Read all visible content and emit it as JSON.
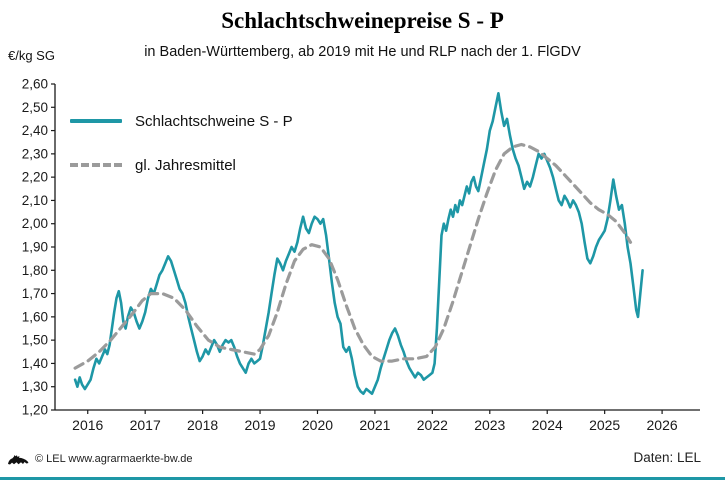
{
  "header": {
    "title": "Schlachtschweinepreise S - P",
    "subtitle": "in Baden-Württemberg, ab 2019 mit He und RLP nach der 1. FlGDV"
  },
  "y_axis_unit": "€/kg SG",
  "legend": {
    "series_price_label": "Schlachtschweine S - P",
    "series_mean_label": "gl. Jahresmittel"
  },
  "footer": {
    "copyright": "© LEL www.agrarmaerkte-bw.de",
    "source": "Daten: LEL",
    "logo": "bw-lion-logo"
  },
  "colors": {
    "accent_teal": "#1E97A6",
    "series_price": "#1E97A6",
    "series_mean": "#9B9B9B",
    "axis": "#1a1a1a"
  },
  "chart_data": {
    "type": "line",
    "title": "Schlachtschweinepreise S - P",
    "subtitle": "in Baden-Württemberg, ab 2019 mit He und RLP nach der 1. FlGDV",
    "xlabel": "",
    "ylabel": "€/kg SG",
    "ylim": [
      1.2,
      2.6
    ],
    "xlim": [
      2015.43,
      2026.66
    ],
    "grid": false,
    "legend_position": "top-left",
    "y_tick_labels": [
      "1,20",
      "1,30",
      "1,40",
      "1,50",
      "1,60",
      "1,70",
      "1,80",
      "1,90",
      "2,00",
      "2,10",
      "2,20",
      "2,30",
      "2,40",
      "2,50",
      "2,60"
    ],
    "x_tick_labels": [
      "2016",
      "2017",
      "2018",
      "2019",
      "2020",
      "2021",
      "2022",
      "2023",
      "2024",
      "2025",
      "2026"
    ],
    "series": [
      {
        "name": "Schlachtschweine S - P",
        "color": "#1E97A6",
        "style": "solid",
        "points": [
          [
            2015.78,
            1.33
          ],
          [
            2015.82,
            1.3
          ],
          [
            2015.86,
            1.34
          ],
          [
            2015.9,
            1.31
          ],
          [
            2015.95,
            1.29
          ],
          [
            2016.0,
            1.31
          ],
          [
            2016.05,
            1.33
          ],
          [
            2016.1,
            1.38
          ],
          [
            2016.15,
            1.42
          ],
          [
            2016.2,
            1.4
          ],
          [
            2016.25,
            1.43
          ],
          [
            2016.3,
            1.46
          ],
          [
            2016.34,
            1.44
          ],
          [
            2016.38,
            1.48
          ],
          [
            2016.42,
            1.55
          ],
          [
            2016.46,
            1.62
          ],
          [
            2016.5,
            1.68
          ],
          [
            2016.54,
            1.71
          ],
          [
            2016.58,
            1.66
          ],
          [
            2016.62,
            1.58
          ],
          [
            2016.66,
            1.55
          ],
          [
            2016.7,
            1.6
          ],
          [
            2016.75,
            1.64
          ],
          [
            2016.8,
            1.62
          ],
          [
            2016.85,
            1.58
          ],
          [
            2016.9,
            1.55
          ],
          [
            2016.95,
            1.58
          ],
          [
            2017.0,
            1.62
          ],
          [
            2017.05,
            1.68
          ],
          [
            2017.1,
            1.72
          ],
          [
            2017.15,
            1.7
          ],
          [
            2017.2,
            1.74
          ],
          [
            2017.25,
            1.78
          ],
          [
            2017.3,
            1.8
          ],
          [
            2017.35,
            1.83
          ],
          [
            2017.4,
            1.86
          ],
          [
            2017.45,
            1.84
          ],
          [
            2017.5,
            1.8
          ],
          [
            2017.55,
            1.76
          ],
          [
            2017.6,
            1.72
          ],
          [
            2017.65,
            1.7
          ],
          [
            2017.7,
            1.66
          ],
          [
            2017.75,
            1.6
          ],
          [
            2017.8,
            1.55
          ],
          [
            2017.85,
            1.5
          ],
          [
            2017.9,
            1.45
          ],
          [
            2017.95,
            1.41
          ],
          [
            2018.0,
            1.43
          ],
          [
            2018.05,
            1.46
          ],
          [
            2018.1,
            1.44
          ],
          [
            2018.15,
            1.47
          ],
          [
            2018.2,
            1.5
          ],
          [
            2018.25,
            1.48
          ],
          [
            2018.3,
            1.45
          ],
          [
            2018.35,
            1.48
          ],
          [
            2018.4,
            1.5
          ],
          [
            2018.45,
            1.49
          ],
          [
            2018.5,
            1.5
          ],
          [
            2018.55,
            1.47
          ],
          [
            2018.6,
            1.43
          ],
          [
            2018.65,
            1.4
          ],
          [
            2018.7,
            1.38
          ],
          [
            2018.75,
            1.36
          ],
          [
            2018.8,
            1.4
          ],
          [
            2018.85,
            1.42
          ],
          [
            2018.9,
            1.4
          ],
          [
            2018.95,
            1.41
          ],
          [
            2019.0,
            1.42
          ],
          [
            2019.05,
            1.48
          ],
          [
            2019.1,
            1.55
          ],
          [
            2019.15,
            1.62
          ],
          [
            2019.2,
            1.7
          ],
          [
            2019.25,
            1.78
          ],
          [
            2019.3,
            1.85
          ],
          [
            2019.35,
            1.83
          ],
          [
            2019.4,
            1.8
          ],
          [
            2019.45,
            1.84
          ],
          [
            2019.5,
            1.87
          ],
          [
            2019.55,
            1.9
          ],
          [
            2019.6,
            1.88
          ],
          [
            2019.65,
            1.92
          ],
          [
            2019.7,
            1.98
          ],
          [
            2019.75,
            2.03
          ],
          [
            2019.8,
            1.98
          ],
          [
            2019.85,
            1.96
          ],
          [
            2019.9,
            2.0
          ],
          [
            2019.95,
            2.03
          ],
          [
            2020.0,
            2.02
          ],
          [
            2020.05,
            2.0
          ],
          [
            2020.1,
            2.02
          ],
          [
            2020.15,
            1.95
          ],
          [
            2020.2,
            1.85
          ],
          [
            2020.25,
            1.75
          ],
          [
            2020.3,
            1.66
          ],
          [
            2020.35,
            1.6
          ],
          [
            2020.4,
            1.57
          ],
          [
            2020.45,
            1.47
          ],
          [
            2020.5,
            1.45
          ],
          [
            2020.55,
            1.47
          ],
          [
            2020.6,
            1.42
          ],
          [
            2020.65,
            1.35
          ],
          [
            2020.7,
            1.3
          ],
          [
            2020.75,
            1.28
          ],
          [
            2020.8,
            1.27
          ],
          [
            2020.85,
            1.29
          ],
          [
            2020.9,
            1.28
          ],
          [
            2020.95,
            1.27
          ],
          [
            2021.0,
            1.3
          ],
          [
            2021.05,
            1.33
          ],
          [
            2021.1,
            1.38
          ],
          [
            2021.15,
            1.42
          ],
          [
            2021.2,
            1.46
          ],
          [
            2021.25,
            1.5
          ],
          [
            2021.3,
            1.53
          ],
          [
            2021.35,
            1.55
          ],
          [
            2021.4,
            1.52
          ],
          [
            2021.45,
            1.48
          ],
          [
            2021.5,
            1.45
          ],
          [
            2021.55,
            1.41
          ],
          [
            2021.6,
            1.38
          ],
          [
            2021.65,
            1.36
          ],
          [
            2021.7,
            1.34
          ],
          [
            2021.75,
            1.36
          ],
          [
            2021.8,
            1.35
          ],
          [
            2021.85,
            1.33
          ],
          [
            2021.9,
            1.34
          ],
          [
            2021.95,
            1.35
          ],
          [
            2022.0,
            1.36
          ],
          [
            2022.04,
            1.4
          ],
          [
            2022.08,
            1.55
          ],
          [
            2022.12,
            1.75
          ],
          [
            2022.16,
            1.95
          ],
          [
            2022.2,
            2.0
          ],
          [
            2022.24,
            1.97
          ],
          [
            2022.28,
            2.02
          ],
          [
            2022.32,
            2.06
          ],
          [
            2022.36,
            2.03
          ],
          [
            2022.4,
            2.08
          ],
          [
            2022.44,
            2.05
          ],
          [
            2022.48,
            2.1
          ],
          [
            2022.52,
            2.08
          ],
          [
            2022.56,
            2.12
          ],
          [
            2022.6,
            2.16
          ],
          [
            2022.64,
            2.13
          ],
          [
            2022.68,
            2.18
          ],
          [
            2022.72,
            2.2
          ],
          [
            2022.76,
            2.16
          ],
          [
            2022.8,
            2.14
          ],
          [
            2022.85,
            2.2
          ],
          [
            2022.9,
            2.26
          ],
          [
            2022.95,
            2.32
          ],
          [
            2023.0,
            2.4
          ],
          [
            2023.05,
            2.44
          ],
          [
            2023.1,
            2.5
          ],
          [
            2023.15,
            2.56
          ],
          [
            2023.2,
            2.48
          ],
          [
            2023.25,
            2.42
          ],
          [
            2023.3,
            2.45
          ],
          [
            2023.35,
            2.38
          ],
          [
            2023.4,
            2.32
          ],
          [
            2023.45,
            2.28
          ],
          [
            2023.5,
            2.25
          ],
          [
            2023.55,
            2.2
          ],
          [
            2023.6,
            2.15
          ],
          [
            2023.65,
            2.18
          ],
          [
            2023.7,
            2.16
          ],
          [
            2023.75,
            2.2
          ],
          [
            2023.8,
            2.25
          ],
          [
            2023.85,
            2.3
          ],
          [
            2023.9,
            2.28
          ],
          [
            2023.95,
            2.3
          ],
          [
            2024.0,
            2.27
          ],
          [
            2024.05,
            2.24
          ],
          [
            2024.1,
            2.2
          ],
          [
            2024.15,
            2.15
          ],
          [
            2024.2,
            2.1
          ],
          [
            2024.25,
            2.08
          ],
          [
            2024.3,
            2.12
          ],
          [
            2024.35,
            2.1
          ],
          [
            2024.4,
            2.07
          ],
          [
            2024.45,
            2.1
          ],
          [
            2024.5,
            2.08
          ],
          [
            2024.55,
            2.05
          ],
          [
            2024.6,
            2.0
          ],
          [
            2024.65,
            1.92
          ],
          [
            2024.7,
            1.85
          ],
          [
            2024.75,
            1.83
          ],
          [
            2024.8,
            1.86
          ],
          [
            2024.85,
            1.9
          ],
          [
            2024.9,
            1.93
          ],
          [
            2024.95,
            1.95
          ],
          [
            2025.0,
            1.97
          ],
          [
            2025.05,
            2.02
          ],
          [
            2025.1,
            2.1
          ],
          [
            2025.15,
            2.19
          ],
          [
            2025.2,
            2.12
          ],
          [
            2025.25,
            2.06
          ],
          [
            2025.3,
            2.08
          ],
          [
            2025.35,
            2.0
          ],
          [
            2025.4,
            1.9
          ],
          [
            2025.45,
            1.83
          ],
          [
            2025.5,
            1.73
          ],
          [
            2025.55,
            1.63
          ],
          [
            2025.58,
            1.6
          ],
          [
            2025.62,
            1.7
          ],
          [
            2025.66,
            1.8
          ]
        ]
      },
      {
        "name": "gl. Jahresmittel",
        "color": "#9B9B9B",
        "style": "dashed",
        "points": [
          [
            2015.78,
            1.38
          ],
          [
            2016.0,
            1.41
          ],
          [
            2016.2,
            1.45
          ],
          [
            2016.4,
            1.5
          ],
          [
            2016.6,
            1.56
          ],
          [
            2016.8,
            1.62
          ],
          [
            2016.95,
            1.67
          ],
          [
            2017.1,
            1.7
          ],
          [
            2017.3,
            1.7
          ],
          [
            2017.5,
            1.68
          ],
          [
            2017.7,
            1.63
          ],
          [
            2017.9,
            1.56
          ],
          [
            2018.1,
            1.5
          ],
          [
            2018.3,
            1.47
          ],
          [
            2018.5,
            1.46
          ],
          [
            2018.7,
            1.45
          ],
          [
            2018.9,
            1.44
          ],
          [
            2019.0,
            1.46
          ],
          [
            2019.15,
            1.52
          ],
          [
            2019.3,
            1.62
          ],
          [
            2019.45,
            1.74
          ],
          [
            2019.6,
            1.84
          ],
          [
            2019.75,
            1.89
          ],
          [
            2019.9,
            1.91
          ],
          [
            2020.05,
            1.9
          ],
          [
            2020.2,
            1.85
          ],
          [
            2020.35,
            1.76
          ],
          [
            2020.5,
            1.65
          ],
          [
            2020.65,
            1.55
          ],
          [
            2020.8,
            1.48
          ],
          [
            2020.95,
            1.43
          ],
          [
            2021.1,
            1.41
          ],
          [
            2021.3,
            1.41
          ],
          [
            2021.5,
            1.42
          ],
          [
            2021.7,
            1.42
          ],
          [
            2021.9,
            1.43
          ],
          [
            2022.05,
            1.47
          ],
          [
            2022.2,
            1.55
          ],
          [
            2022.35,
            1.66
          ],
          [
            2022.5,
            1.78
          ],
          [
            2022.65,
            1.9
          ],
          [
            2022.8,
            2.02
          ],
          [
            2022.95,
            2.13
          ],
          [
            2023.1,
            2.23
          ],
          [
            2023.25,
            2.3
          ],
          [
            2023.4,
            2.33
          ],
          [
            2023.55,
            2.34
          ],
          [
            2023.7,
            2.33
          ],
          [
            2023.85,
            2.31
          ],
          [
            2024.0,
            2.28
          ],
          [
            2024.15,
            2.25
          ],
          [
            2024.3,
            2.21
          ],
          [
            2024.45,
            2.17
          ],
          [
            2024.6,
            2.13
          ],
          [
            2024.75,
            2.09
          ],
          [
            2024.9,
            2.06
          ],
          [
            2025.05,
            2.04
          ],
          [
            2025.2,
            2.01
          ],
          [
            2025.35,
            1.96
          ],
          [
            2025.45,
            1.92
          ]
        ]
      }
    ]
  }
}
